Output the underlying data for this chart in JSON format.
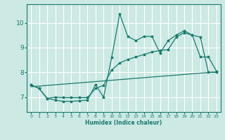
{
  "xlabel": "Humidex (Indice chaleur)",
  "background_color": "#cce9e4",
  "line_color": "#1a7a6e",
  "grid_color": "#ffffff",
  "xlim": [
    -0.5,
    23.5
  ],
  "ylim": [
    6.4,
    10.75
  ],
  "yticks": [
    7,
    8,
    9,
    10
  ],
  "xticks": [
    0,
    1,
    2,
    3,
    4,
    5,
    6,
    7,
    8,
    9,
    10,
    11,
    12,
    13,
    14,
    15,
    16,
    17,
    18,
    19,
    20,
    21,
    22,
    23
  ],
  "line1_x": [
    0,
    1,
    2,
    3,
    4,
    5,
    6,
    7,
    8,
    9,
    10,
    11,
    12,
    13,
    14,
    15,
    16,
    17,
    18,
    19,
    20,
    21,
    22,
    23
  ],
  "line1_y": [
    7.5,
    7.35,
    6.95,
    6.88,
    6.83,
    6.83,
    6.85,
    6.88,
    7.5,
    7.0,
    8.6,
    10.35,
    9.45,
    9.28,
    9.45,
    9.45,
    8.78,
    9.28,
    9.5,
    9.68,
    9.5,
    8.62,
    8.62,
    8.05
  ],
  "line2_x": [
    0,
    1,
    2,
    3,
    4,
    5,
    6,
    7,
    8,
    9,
    10,
    11,
    12,
    13,
    14,
    15,
    16,
    17,
    18,
    19,
    20,
    21,
    22,
    23
  ],
  "line2_y": [
    7.5,
    7.35,
    6.95,
    7.0,
    6.98,
    6.98,
    6.98,
    6.98,
    7.35,
    7.48,
    8.1,
    8.38,
    8.52,
    8.62,
    8.72,
    8.82,
    8.88,
    8.92,
    9.42,
    9.6,
    9.5,
    9.42,
    8.0,
    8.0
  ],
  "line3_x": [
    0,
    23
  ],
  "line3_y": [
    7.42,
    8.02
  ]
}
